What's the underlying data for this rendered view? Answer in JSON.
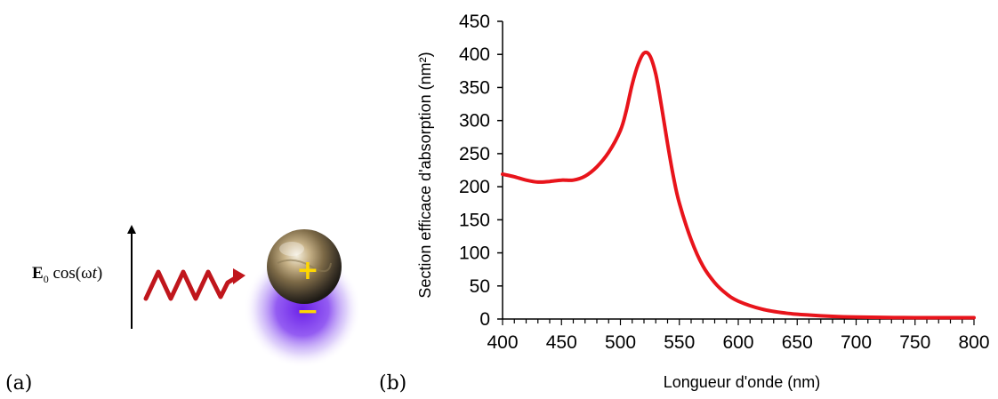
{
  "panel_a": {
    "label": "(a)",
    "field_symbol": "E",
    "field_subscript": "0",
    "field_function": " cos(ω",
    "field_variable": "t",
    "field_close": ")",
    "charge_positive": "+",
    "charge_negative": "−",
    "colors": {
      "wave": "#c0161c",
      "charge": "#ffd700",
      "glow": "#7a2cf5"
    }
  },
  "panel_b": {
    "label": "(b)"
  },
  "chart_data": {
    "type": "line",
    "xlabel": "Longueur d'onde (nm)",
    "ylabel": "Section efficace d'absorption (nm²)",
    "xlim": [
      400,
      800
    ],
    "ylim": [
      0,
      450
    ],
    "xticks": [
      400,
      450,
      500,
      550,
      600,
      650,
      700,
      750,
      800
    ],
    "yticks": [
      0,
      50,
      100,
      150,
      200,
      250,
      300,
      350,
      400,
      450
    ],
    "minor_x_step": 10,
    "grid": false,
    "line_color": "#e8141b",
    "series": [
      {
        "x": [
          400,
          410,
          420,
          430,
          440,
          450,
          460,
          470,
          480,
          490,
          500,
          505,
          510,
          515,
          520,
          525,
          530,
          535,
          540,
          545,
          550,
          560,
          570,
          580,
          590,
          600,
          620,
          640,
          660,
          680,
          700,
          750,
          800
        ],
        "values": [
          219,
          215,
          210,
          207,
          208,
          210,
          210,
          216,
          230,
          252,
          285,
          315,
          355,
          385,
          402,
          398,
          370,
          320,
          265,
          215,
          175,
          120,
          80,
          55,
          38,
          27,
          15,
          9,
          6,
          4,
          3,
          2,
          2
        ]
      }
    ]
  }
}
